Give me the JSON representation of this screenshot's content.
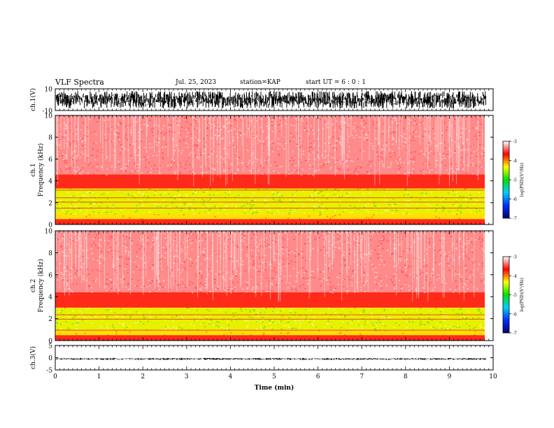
{
  "header": {
    "title": "VLF Spectra",
    "date": "Jul. 25, 2023",
    "station": "station=KAP",
    "start": "start UT =  6 : 0 : 1"
  },
  "chart_data": [
    {
      "type": "line",
      "panel": "waveform-ch1",
      "ylabel": "ch.1(V)",
      "ylim": [
        -10,
        10
      ],
      "y_tick_labels": [
        "10",
        "-10"
      ],
      "signal": "noise-like waveform",
      "envelope_v": [
        -8,
        8
      ],
      "color": "#000000"
    },
    {
      "type": "heatmap",
      "panel": "spectrogram-ch1",
      "ylabel": "ch.1\nFrequency (kHz)",
      "ylim": [
        0,
        10
      ],
      "y_ticks": [
        0,
        2,
        4,
        6,
        8,
        10
      ],
      "bands_khz": [
        {
          "from": 0.0,
          "to": 0.5,
          "level": "red"
        },
        {
          "from": 0.5,
          "to": 1.0,
          "level": "yellow"
        },
        {
          "from": 1.0,
          "to": 3.3,
          "level": "yellow-green"
        },
        {
          "from": 3.3,
          "to": 4.6,
          "level": "red"
        },
        {
          "from": 4.6,
          "to": 10.0,
          "level": "light-red"
        }
      ],
      "lines_khz": [
        1.5,
        2.05,
        2.45,
        3.15
      ],
      "colorbar": {
        "label": "log(PSD)(V²/Hz)",
        "min": -7,
        "max": -3,
        "tick_labels": [
          "-3",
          "-4",
          "-5",
          "-6",
          "-7"
        ],
        "tick_values": [
          -3,
          -4,
          -5,
          -6,
          -7
        ],
        "stops": [
          "#000070",
          "#0030ff",
          "#00d0ff",
          "#00e000",
          "#ffff00",
          "#ff0000",
          "#ffffff"
        ]
      }
    },
    {
      "type": "heatmap",
      "panel": "spectrogram-ch2",
      "ylabel": "ch.2\nFrequency (kHz)",
      "ylim": [
        0,
        10
      ],
      "y_ticks": [
        0,
        2,
        4,
        6,
        8,
        10
      ],
      "bands_khz": [
        {
          "from": 0.0,
          "to": 0.5,
          "level": "red"
        },
        {
          "from": 0.5,
          "to": 1.0,
          "level": "yellow"
        },
        {
          "from": 1.0,
          "to": 3.0,
          "level": "yellow-green"
        },
        {
          "from": 3.0,
          "to": 4.4,
          "level": "red"
        },
        {
          "from": 4.4,
          "to": 10.0,
          "level": "light-red"
        }
      ],
      "lines_khz": [
        0.95,
        1.95,
        2.35
      ],
      "colorbar": {
        "label": "log(PSD)(V²/Hz)",
        "min": -7,
        "max": -3,
        "tick_labels": [
          "-3",
          "-4",
          "-5",
          "-6",
          "-7"
        ],
        "tick_values": [
          -3,
          -4,
          -5,
          -6,
          -7
        ],
        "stops": [
          "#000070",
          "#0030ff",
          "#00d0ff",
          "#00e000",
          "#ffff00",
          "#ff0000",
          "#ffffff"
        ]
      }
    },
    {
      "type": "line",
      "panel": "waveform-ch3",
      "ylabel": "ch.3(V)",
      "ylim": [
        -5,
        5
      ],
      "y_tick_labels": [
        "5",
        "0",
        "-5"
      ],
      "y_tick_values": [
        5,
        0,
        -5
      ],
      "signal": "narrow band near -0.5 V",
      "envelope_v": [
        -0.9,
        -0.1
      ],
      "color": "#000000"
    }
  ],
  "x_axis": {
    "label": "Time (min)",
    "xlim": [
      0,
      10
    ],
    "ticks": [
      0,
      1,
      2,
      3,
      4,
      5,
      6,
      7,
      8,
      9,
      10
    ],
    "data_end_min": 9.83
  }
}
